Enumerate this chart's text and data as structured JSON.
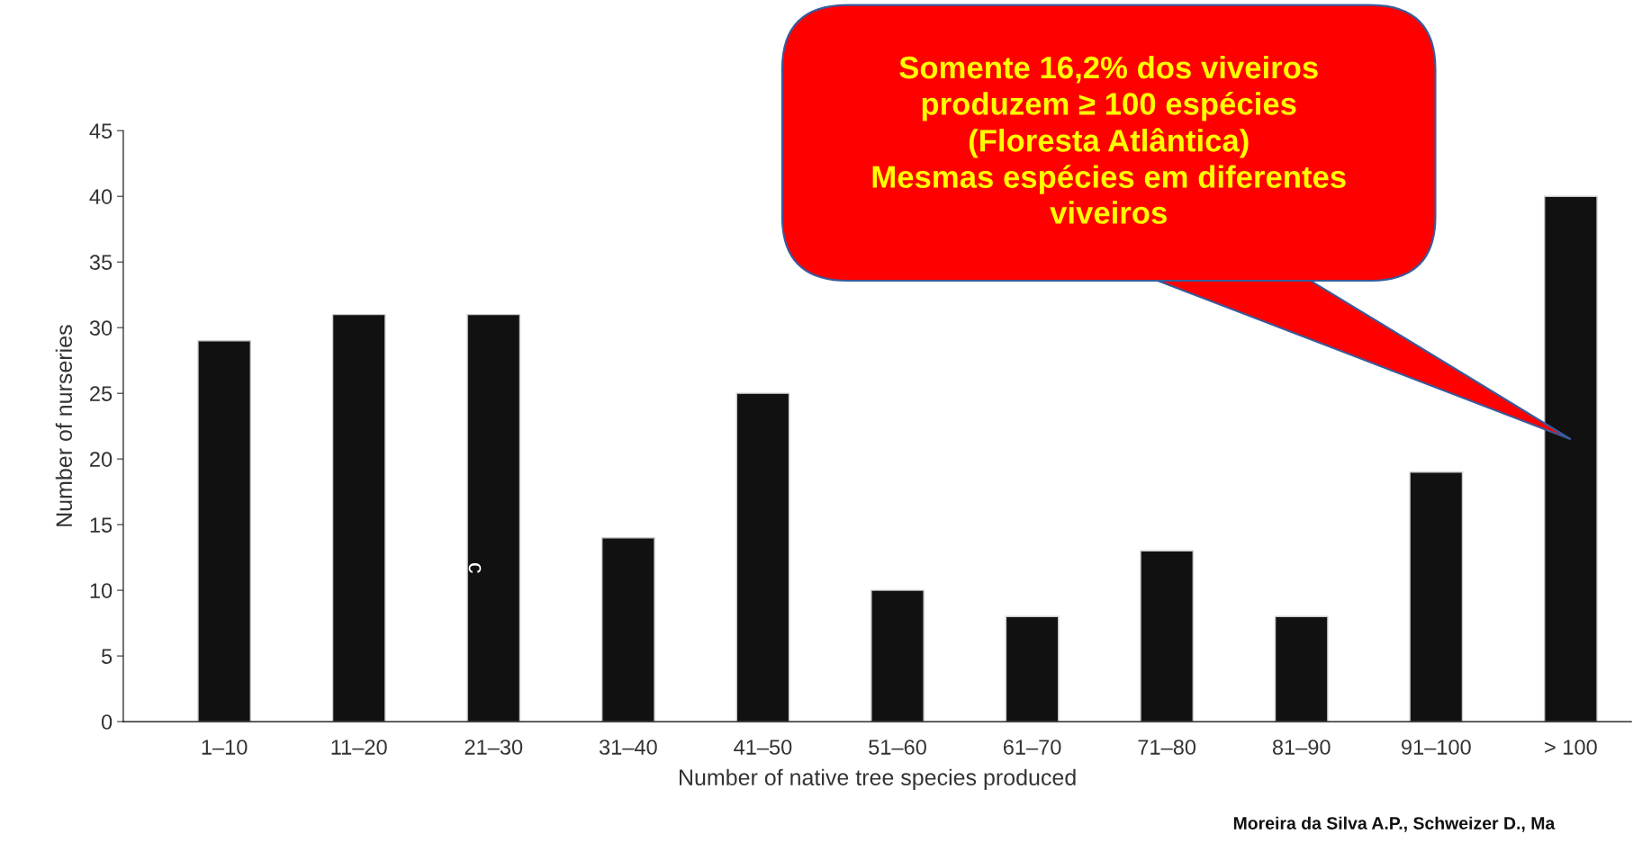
{
  "chart_data": {
    "type": "bar",
    "xlabel": "Number of native tree species produced",
    "ylabel": "Number of nurseries",
    "categories": [
      "1–10",
      "11–20",
      "21–30",
      "31–40",
      "41–50",
      "51–60",
      "61–70",
      "71–80",
      "81–90",
      "91–100",
      "> 100"
    ],
    "values": [
      29,
      31,
      31,
      14,
      25,
      10,
      8,
      13,
      8,
      19,
      40
    ],
    "color": "#111111",
    "ylim": [
      0,
      45
    ],
    "yticks": [
      0,
      5,
      10,
      15,
      20,
      25,
      30,
      35,
      40,
      45
    ],
    "grid": false,
    "annotations": [
      "Somente 16,2% dos viveiros\nproduzem ≥ 100 espécies\n(Floresta Atlântica)\nMesmas espécies em diferentes\nviveiros",
      "c",
      "Moreira da Silva A.P., Schweizer D., Ma"
    ]
  }
}
